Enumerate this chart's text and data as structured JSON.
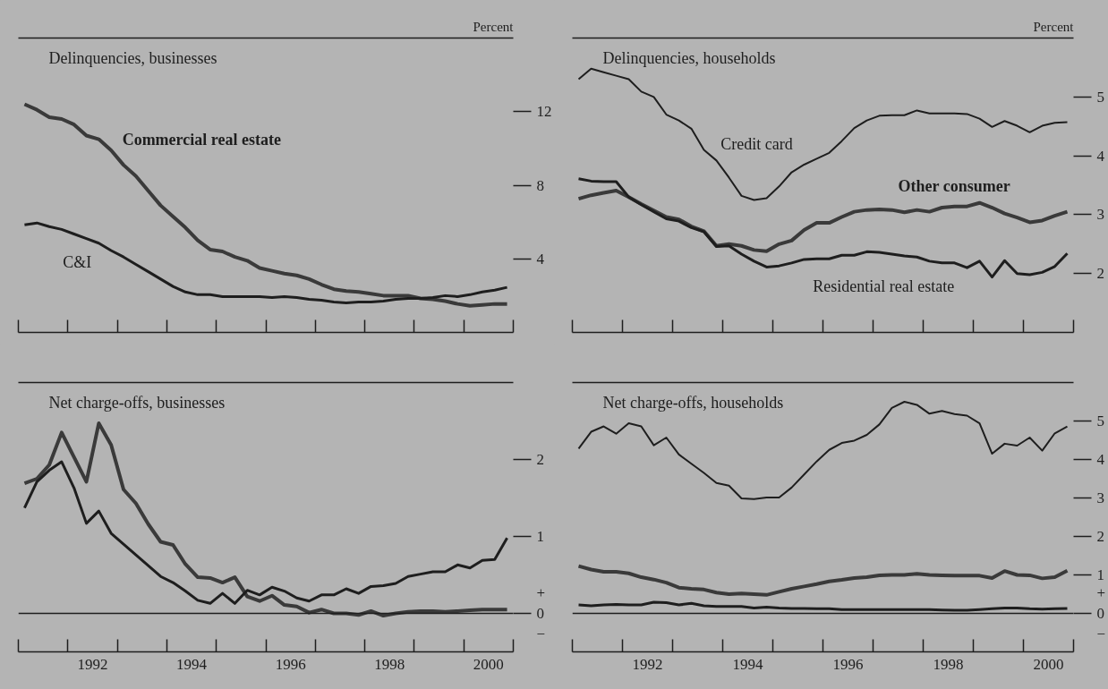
{
  "chart_data": [
    {
      "type": "line",
      "title": "Delinquencies, businesses",
      "ylabel": "Percent",
      "xlim": [
        1991,
        2001
      ],
      "ylim": [
        0,
        16
      ],
      "yticks": [
        4,
        8,
        12
      ],
      "tick_labels": "y",
      "xticks": [
        {
          "value": 1991,
          "label": null
        },
        {
          "value": 1992,
          "label": null
        },
        {
          "value": 1993,
          "label": null
        },
        {
          "value": 1994,
          "label": null
        },
        {
          "value": 1995,
          "label": null
        },
        {
          "value": 1996,
          "label": null
        },
        {
          "value": 1997,
          "label": null
        },
        {
          "value": 1998,
          "label": null
        },
        {
          "value": 1999,
          "label": null
        },
        {
          "value": 2000,
          "label": null
        },
        {
          "value": 2001,
          "label": null
        }
      ],
      "x": [
        1991.125,
        1991.375,
        1991.625,
        1991.875,
        1992.125,
        1992.375,
        1992.625,
        1992.875,
        1993.125,
        1993.375,
        1993.625,
        1993.875,
        1994.125,
        1994.375,
        1994.625,
        1994.875,
        1995.125,
        1995.375,
        1995.625,
        1995.875,
        1996.125,
        1996.375,
        1996.625,
        1996.875,
        1997.125,
        1997.375,
        1997.625,
        1997.875,
        1998.125,
        1998.375,
        1998.625,
        1998.875,
        1999.125,
        1999.375,
        1999.625,
        1999.875,
        2000.125,
        2000.375,
        2000.625,
        2000.875
      ],
      "series": [
        {
          "name": "Commercial real estate",
          "color": "#3a3a3a",
          "values": [
            12.4,
            12.1,
            11.7,
            11.6,
            11.3,
            10.7,
            10.5,
            9.9,
            9.1,
            8.5,
            7.7,
            6.9,
            6.3,
            5.7,
            5.0,
            4.5,
            4.4,
            4.1,
            3.9,
            3.5,
            3.35,
            3.2,
            3.1,
            2.9,
            2.6,
            2.35,
            2.25,
            2.2,
            2.1,
            2.0,
            2.0,
            2.0,
            1.85,
            1.8,
            1.7,
            1.55,
            1.45,
            1.5,
            1.55,
            1.55
          ]
        },
        {
          "name": "C&I",
          "color": "#1e1e1e",
          "values": [
            5.85,
            5.95,
            5.75,
            5.6,
            5.35,
            5.1,
            4.85,
            4.45,
            4.1,
            3.7,
            3.3,
            2.9,
            2.5,
            2.2,
            2.05,
            2.05,
            1.95,
            1.95,
            1.95,
            1.95,
            1.9,
            1.95,
            1.9,
            1.8,
            1.75,
            1.65,
            1.6,
            1.65,
            1.65,
            1.7,
            1.8,
            1.85,
            1.85,
            1.9,
            2.0,
            1.95,
            2.05,
            2.2,
            2.3,
            2.45
          ]
        }
      ]
    },
    {
      "type": "line",
      "title": "Delinquencies, households",
      "ylabel": "Percent",
      "xlim": [
        1991,
        2001
      ],
      "ylim": [
        1,
        6
      ],
      "yticks": [
        2,
        3,
        4,
        5
      ],
      "tick_labels": "y",
      "xticks": [
        {
          "value": 1991,
          "label": null
        },
        {
          "value": 1992,
          "label": null
        },
        {
          "value": 1993,
          "label": null
        },
        {
          "value": 1994,
          "label": null
        },
        {
          "value": 1995,
          "label": null
        },
        {
          "value": 1996,
          "label": null
        },
        {
          "value": 1997,
          "label": null
        },
        {
          "value": 1998,
          "label": null
        },
        {
          "value": 1999,
          "label": null
        },
        {
          "value": 2000,
          "label": null
        },
        {
          "value": 2001,
          "label": null
        }
      ],
      "x": [
        1991.125,
        1991.375,
        1991.625,
        1991.875,
        1992.125,
        1992.375,
        1992.625,
        1992.875,
        1993.125,
        1993.375,
        1993.625,
        1993.875,
        1994.125,
        1994.375,
        1994.625,
        1994.875,
        1995.125,
        1995.375,
        1995.625,
        1995.875,
        1996.125,
        1996.375,
        1996.625,
        1996.875,
        1997.125,
        1997.375,
        1997.625,
        1997.875,
        1998.125,
        1998.375,
        1998.625,
        1998.875,
        1999.125,
        1999.375,
        1999.625,
        1999.875,
        2000.125,
        2000.375,
        2000.625,
        2000.875
      ],
      "series": [
        {
          "name": "Credit card",
          "color": "#1e1e1e",
          "values": [
            5.3,
            5.48,
            5.42,
            5.36,
            5.3,
            5.09,
            5.0,
            4.7,
            4.6,
            4.46,
            4.1,
            3.92,
            3.63,
            3.32,
            3.25,
            3.28,
            3.48,
            3.72,
            3.85,
            3.95,
            4.05,
            4.25,
            4.47,
            4.6,
            4.68,
            4.69,
            4.69,
            4.77,
            4.72,
            4.72,
            4.72,
            4.71,
            4.63,
            4.49,
            4.59,
            4.51,
            4.4,
            4.51,
            4.56,
            4.57
          ]
        },
        {
          "name": "Other consumer",
          "color": "#3a3a3a",
          "values": [
            3.27,
            3.33,
            3.37,
            3.41,
            3.3,
            3.18,
            3.07,
            2.96,
            2.92,
            2.8,
            2.72,
            2.47,
            2.5,
            2.47,
            2.4,
            2.38,
            2.5,
            2.56,
            2.74,
            2.86,
            2.86,
            2.96,
            3.05,
            3.08,
            3.09,
            3.08,
            3.04,
            3.08,
            3.05,
            3.12,
            3.14,
            3.14,
            3.2,
            3.12,
            3.02,
            2.95,
            2.87,
            2.9,
            2.98,
            3.05
          ]
        },
        {
          "name": "Residential real estate",
          "color": "#1e1e1e",
          "values": [
            3.61,
            3.57,
            3.56,
            3.56,
            3.3,
            3.17,
            3.05,
            2.93,
            2.89,
            2.78,
            2.71,
            2.46,
            2.47,
            2.33,
            2.21,
            2.11,
            2.13,
            2.18,
            2.24,
            2.25,
            2.25,
            2.31,
            2.31,
            2.37,
            2.36,
            2.33,
            2.3,
            2.28,
            2.21,
            2.18,
            2.18,
            2.1,
            2.21,
            1.94,
            2.22,
            2.0,
            1.98,
            2.02,
            2.12,
            2.34
          ]
        }
      ]
    },
    {
      "type": "line",
      "title": "Net charge-offs, businesses",
      "xlim": [
        1991,
        2001
      ],
      "ylim": [
        -0.5,
        3
      ],
      "yticks": [
        {
          "value": 0,
          "label": "+\n0\n−"
        },
        1,
        2
      ],
      "ref_lines": [
        {
          "axis": "y",
          "value": 0,
          "label": null,
          "color": "#1e1e1e"
        }
      ],
      "xticks": [
        {
          "value": 1991,
          "label": null
        },
        {
          "value": 1992,
          "label": null
        },
        {
          "value": 1993,
          "label": null
        },
        {
          "value": 1994,
          "label": null
        },
        {
          "value": 1995,
          "label": null
        },
        {
          "value": 1996,
          "label": null
        },
        {
          "value": 1997,
          "label": null
        },
        {
          "value": 1998,
          "label": null
        },
        {
          "value": 1999,
          "label": null
        },
        {
          "value": 2000,
          "label": null
        },
        {
          "value": 2001,
          "label": null
        },
        {
          "value": 1992.5,
          "label": "1992"
        },
        {
          "value": 1994.5,
          "label": "1994"
        },
        {
          "value": 1996.5,
          "label": "1996"
        },
        {
          "value": 1998.5,
          "label": "1998"
        },
        {
          "value": 2000.5,
          "label": "2000"
        }
      ],
      "x": [
        1991.125,
        1991.375,
        1991.625,
        1991.875,
        1992.125,
        1992.375,
        1992.625,
        1992.875,
        1993.125,
        1993.375,
        1993.625,
        1993.875,
        1994.125,
        1994.375,
        1994.625,
        1994.875,
        1995.125,
        1995.375,
        1995.625,
        1995.875,
        1996.125,
        1996.375,
        1996.625,
        1996.875,
        1997.125,
        1997.375,
        1997.625,
        1997.875,
        1998.125,
        1998.375,
        1998.625,
        1998.875,
        1999.125,
        1999.375,
        1999.625,
        1999.875,
        2000.125,
        2000.375,
        2000.625,
        2000.875
      ],
      "series": [
        {
          "color": "#3a3a3a",
          "values": [
            1.69,
            1.75,
            1.93,
            2.35,
            2.03,
            1.71,
            2.47,
            2.19,
            1.61,
            1.43,
            1.16,
            0.93,
            0.89,
            0.64,
            0.47,
            0.46,
            0.4,
            0.47,
            0.22,
            0.16,
            0.23,
            0.11,
            0.09,
            0.01,
            0.05,
            0.0,
            0.0,
            -0.02,
            0.03,
            -0.03,
            0.0,
            0.02,
            0.03,
            0.03,
            0.02,
            0.03,
            0.04,
            0.05,
            0.05,
            0.05
          ]
        },
        {
          "color": "#1e1e1e",
          "values": [
            1.37,
            1.71,
            1.86,
            1.97,
            1.63,
            1.17,
            1.33,
            1.04,
            0.9,
            0.76,
            0.62,
            0.48,
            0.4,
            0.29,
            0.17,
            0.13,
            0.26,
            0.13,
            0.3,
            0.24,
            0.34,
            0.29,
            0.2,
            0.16,
            0.24,
            0.24,
            0.32,
            0.26,
            0.35,
            0.36,
            0.39,
            0.48,
            0.51,
            0.54,
            0.54,
            0.63,
            0.59,
            0.69,
            0.7,
            0.98
          ]
        }
      ]
    },
    {
      "type": "line",
      "title": "Net charge-offs, households",
      "xlim": [
        1991,
        2001
      ],
      "ylim": [
        -1,
        6
      ],
      "yticks": [
        {
          "value": 0,
          "label": "+\n0\n−"
        },
        1,
        2,
        3,
        4,
        5
      ],
      "ref_lines": [
        {
          "axis": "y",
          "value": 0,
          "label": null,
          "color": "#1e1e1e"
        }
      ],
      "xticks": [
        {
          "value": 1991,
          "label": null
        },
        {
          "value": 1992,
          "label": null
        },
        {
          "value": 1993,
          "label": null
        },
        {
          "value": 1994,
          "label": null
        },
        {
          "value": 1995,
          "label": null
        },
        {
          "value": 1996,
          "label": null
        },
        {
          "value": 1997,
          "label": null
        },
        {
          "value": 1998,
          "label": null
        },
        {
          "value": 1999,
          "label": null
        },
        {
          "value": 2000,
          "label": null
        },
        {
          "value": 2001,
          "label": null
        },
        {
          "value": 1992.5,
          "label": "1992"
        },
        {
          "value": 1994.5,
          "label": "1994"
        },
        {
          "value": 1996.5,
          "label": "1996"
        },
        {
          "value": 1998.5,
          "label": "1998"
        },
        {
          "value": 2000.5,
          "label": "2000"
        }
      ],
      "x": [
        1991.125,
        1991.375,
        1991.625,
        1991.875,
        1992.125,
        1992.375,
        1992.625,
        1992.875,
        1993.125,
        1993.375,
        1993.625,
        1993.875,
        1994.125,
        1994.375,
        1994.625,
        1994.875,
        1995.125,
        1995.375,
        1995.625,
        1995.875,
        1996.125,
        1996.375,
        1996.625,
        1996.875,
        1997.125,
        1997.375,
        1997.625,
        1997.875,
        1998.125,
        1998.375,
        1998.625,
        1998.875,
        1999.125,
        1999.375,
        1999.625,
        1999.875,
        2000.125,
        2000.375,
        2000.625,
        2000.875
      ],
      "series": [
        {
          "color": "#1e1e1e",
          "values": [
            4.28,
            4.72,
            4.86,
            4.67,
            4.94,
            4.86,
            4.37,
            4.57,
            4.13,
            3.89,
            3.65,
            3.39,
            3.32,
            2.99,
            2.97,
            3.01,
            3.01,
            3.27,
            3.61,
            3.95,
            4.25,
            4.43,
            4.49,
            4.64,
            4.91,
            5.34,
            5.5,
            5.42,
            5.19,
            5.26,
            5.18,
            5.14,
            4.94,
            4.15,
            4.41,
            4.36,
            4.57,
            4.23,
            4.68,
            4.86
          ]
        },
        {
          "color": "#3a3a3a",
          "values": [
            1.23,
            1.14,
            1.08,
            1.08,
            1.04,
            0.94,
            0.88,
            0.8,
            0.67,
            0.64,
            0.62,
            0.54,
            0.5,
            0.52,
            0.5,
            0.48,
            0.56,
            0.64,
            0.7,
            0.76,
            0.83,
            0.87,
            0.92,
            0.94,
            0.99,
            1.0,
            1.0,
            1.03,
            1.0,
            0.99,
            0.98,
            0.98,
            0.98,
            0.92,
            1.1,
            1.0,
            0.99,
            0.91,
            0.94,
            1.11
          ]
        },
        {
          "color": "#1e1e1e",
          "values": [
            0.22,
            0.2,
            0.22,
            0.23,
            0.22,
            0.22,
            0.29,
            0.28,
            0.22,
            0.26,
            0.2,
            0.18,
            0.18,
            0.18,
            0.14,
            0.16,
            0.14,
            0.13,
            0.13,
            0.12,
            0.12,
            0.1,
            0.1,
            0.1,
            0.1,
            0.1,
            0.1,
            0.1,
            0.1,
            0.09,
            0.08,
            0.08,
            0.1,
            0.12,
            0.14,
            0.14,
            0.12,
            0.11,
            0.12,
            0.13
          ]
        }
      ]
    }
  ]
}
